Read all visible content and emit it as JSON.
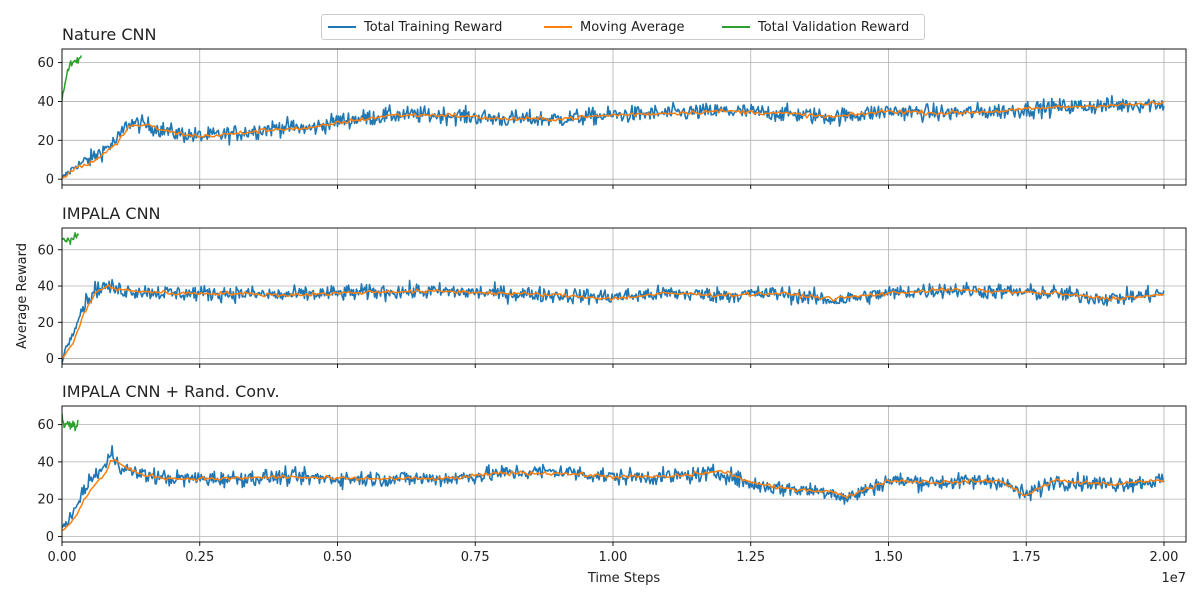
{
  "chart_data": {
    "type": "line",
    "xlabel": "Time Steps",
    "ylabel": "Average Reward",
    "x_offset_label": "1e7",
    "xlim": [
      0,
      20400000
    ],
    "xticks": [
      0,
      2500000,
      5000000,
      7500000,
      10000000,
      12500000,
      15000000,
      17500000,
      20000000
    ],
    "xtick_labels": [
      "0.00",
      "0.25",
      "0.50",
      "0.75",
      "1.00",
      "1.25",
      "1.50",
      "1.75",
      "2.00"
    ],
    "grid": true,
    "legend": {
      "placement": "top-center",
      "entries": [
        {
          "name": "Total Training Reward",
          "color": "#1f77b4"
        },
        {
          "name": "Moving Average",
          "color": "#ff7f0e"
        },
        {
          "name": "Total Validation Reward",
          "color": "#2ca02c"
        }
      ]
    },
    "panels": [
      {
        "title": "Nature CNN",
        "ylim": [
          -3,
          67
        ],
        "yticks": [
          0,
          20,
          40,
          60
        ],
        "series": [
          {
            "name": "Total Training Reward",
            "x": [
              0,
              250000,
              500000,
              1000000,
              1200000,
              1500000,
              2000000,
              2500000,
              3000000,
              4000000,
              4500000,
              5000000,
              6000000,
              7000000,
              8000000,
              9000000,
              10000000,
              11000000,
              12000000,
              13000000,
              14000000,
              15000000,
              16000000,
              17000000,
              18000000,
              19000000,
              20000000
            ],
            "y": [
              0,
              7,
              10,
              20,
              29,
              28,
              24,
              22,
              23,
              27,
              26,
              30,
              33,
              33,
              31,
              31,
              33,
              34,
              35,
              34,
              32,
              35,
              34,
              35,
              37,
              38,
              39
            ]
          },
          {
            "name": "Moving Average",
            "x": [
              0,
              250000,
              500000,
              1000000,
              1200000,
              1500000,
              2000000,
              2500000,
              3000000,
              4000000,
              4500000,
              5000000,
              6000000,
              7000000,
              8000000,
              9000000,
              10000000,
              11000000,
              12000000,
              13000000,
              14000000,
              15000000,
              16000000,
              17000000,
              18000000,
              19000000,
              20000000
            ],
            "y": [
              0,
              6,
              8,
              18,
              27,
              28,
              24,
              22,
              23,
              26,
              26,
              29,
              33,
              33,
              31,
              31,
              33,
              34,
              35,
              34,
              32,
              35,
              34,
              35,
              37,
              38,
              39
            ]
          },
          {
            "name": "Total Validation Reward",
            "x": [
              0,
              50000,
              100000,
              150000,
              200000,
              250000,
              300000,
              350000
            ],
            "y": [
              42,
              48,
              55,
              59,
              61,
              60,
              62,
              63
            ]
          }
        ]
      },
      {
        "title": "IMPALA CNN",
        "ylim": [
          -3,
          72
        ],
        "yticks": [
          0,
          20,
          40,
          60
        ],
        "series": [
          {
            "name": "Total Training Reward",
            "x": [
              0,
              200000,
              400000,
              600000,
              800000,
              1000000,
              1500000,
              2000000,
              3000000,
              4000000,
              5000000,
              6000000,
              7000000,
              8000000,
              9000000,
              10000000,
              11000000,
              12000000,
              13000000,
              14000000,
              15000000,
              16000000,
              17000000,
              18000000,
              19000000,
              20000000
            ],
            "y": [
              0,
              15,
              30,
              38,
              40,
              38,
              37,
              36,
              36,
              35,
              36,
              37,
              37,
              36,
              35,
              34,
              36,
              35,
              36,
              32,
              36,
              38,
              37,
              36,
              33,
              36
            ]
          },
          {
            "name": "Moving Average",
            "x": [
              0,
              200000,
              400000,
              600000,
              800000,
              1000000,
              1500000,
              2000000,
              3000000,
              4000000,
              5000000,
              6000000,
              7000000,
              8000000,
              9000000,
              10000000,
              11000000,
              12000000,
              13000000,
              14000000,
              15000000,
              16000000,
              17000000,
              18000000,
              19000000,
              20000000
            ],
            "y": [
              0,
              8,
              25,
              36,
              40,
              38,
              37,
              36,
              36,
              35,
              36,
              37,
              37,
              36,
              35,
              33,
              36,
              35,
              36,
              33,
              36,
              38,
              37,
              36,
              33,
              35
            ]
          },
          {
            "name": "Total Validation Reward",
            "x": [
              0,
              50000,
              100000,
              150000,
              200000,
              250000,
              300000
            ],
            "y": [
              66,
              65,
              66,
              65,
              66,
              67,
              68
            ]
          }
        ]
      },
      {
        "title": "IMPALA CNN + Rand. Conv.",
        "ylim": [
          -3,
          70
        ],
        "yticks": [
          0,
          20,
          40,
          60
        ],
        "series": [
          {
            "name": "Total Training Reward",
            "x": [
              0,
              200000,
              400000,
              600000,
              800000,
              900000,
              1000000,
              1200000,
              1500000,
              2000000,
              3000000,
              4000000,
              5000000,
              6000000,
              7000000,
              8000000,
              9000000,
              10000000,
              11000000,
              12000000,
              12500000,
              13000000,
              14000000,
              14200000,
              15000000,
              16000000,
              17000000,
              17500000,
              18000000,
              19000000,
              20000000
            ],
            "y": [
              5,
              12,
              25,
              33,
              38,
              45,
              40,
              35,
              33,
              31,
              31,
              32,
              31,
              31,
              31,
              34,
              35,
              32,
              32,
              34,
              28,
              26,
              24,
              20,
              30,
              29,
              30,
              22,
              30,
              28,
              30
            ]
          },
          {
            "name": "Moving Average",
            "x": [
              0,
              200000,
              400000,
              600000,
              800000,
              900000,
              1000000,
              1200000,
              1500000,
              2000000,
              3000000,
              4000000,
              5000000,
              6000000,
              7000000,
              8000000,
              9000000,
              10000000,
              11000000,
              12000000,
              12500000,
              13000000,
              14000000,
              14200000,
              15000000,
              16000000,
              17000000,
              17500000,
              18000000,
              19000000,
              20000000
            ],
            "y": [
              3,
              8,
              20,
              28,
              34,
              42,
              40,
              36,
              33,
              31,
              31,
              32,
              31,
              31,
              31,
              34,
              34,
              32,
              32,
              35,
              29,
              26,
              24,
              21,
              30,
              29,
              30,
              22,
              30,
              28,
              30
            ]
          },
          {
            "name": "Total Validation Reward",
            "x": [
              0,
              50000,
              100000,
              150000,
              200000,
              250000,
              300000
            ],
            "y": [
              65,
              58,
              62,
              59,
              61,
              57,
              62
            ]
          }
        ]
      }
    ]
  }
}
